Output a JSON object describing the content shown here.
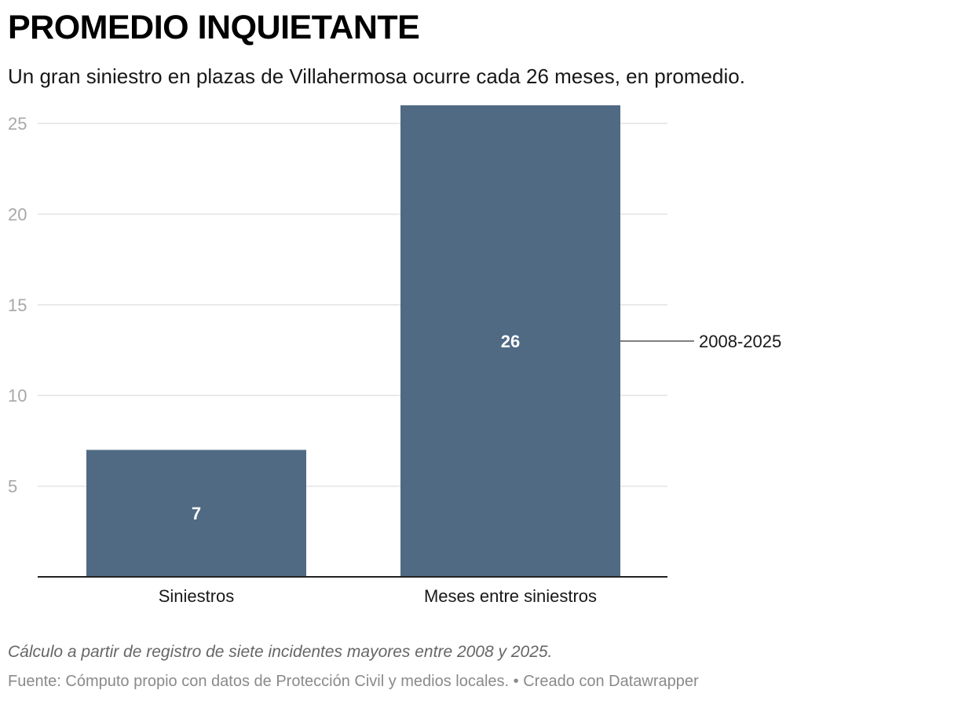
{
  "header": {
    "title": "PROMEDIO INQUIETANTE",
    "subtitle": "Un gran siniestro en plazas de Villahermosa ocurre cada 26 meses, en promedio."
  },
  "chart_data": {
    "type": "bar",
    "categories": [
      "Siniestros",
      "Meses entre siniestros"
    ],
    "values": [
      7,
      26
    ],
    "ylim": [
      0,
      26
    ],
    "yticks": [
      5,
      10,
      15,
      20,
      25
    ],
    "grid": true,
    "bar_color": "#506A84",
    "annotations": [
      {
        "category": "Meses entre siniestros",
        "text": "2008-2025"
      }
    ]
  },
  "footer": {
    "note": "Cálculo a partir de registro de siete incidentes mayores entre 2008 y 2025.",
    "source": "Fuente: Cómputo propio con datos de Protección Civil y medios locales. • Creado con Datawrapper"
  }
}
